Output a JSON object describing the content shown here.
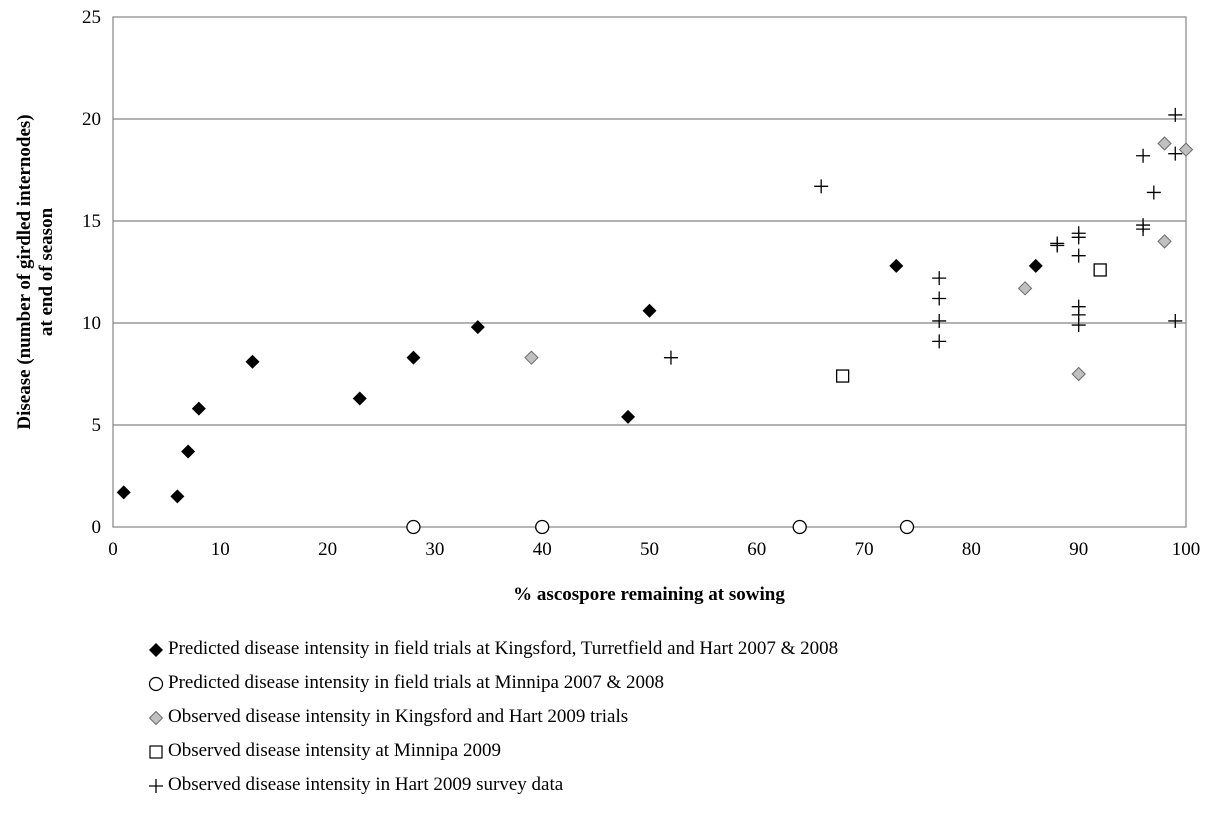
{
  "chart_data": {
    "type": "scatter",
    "xlabel": "% ascospore remaining at sowing",
    "ylabel_lines": [
      "Disease (number of girdled internodes)",
      "at end of season"
    ],
    "xlim": [
      0,
      100
    ],
    "ylim": [
      0,
      25
    ],
    "x_ticks": [
      "0",
      "10",
      "20",
      "30",
      "40",
      "50",
      "60",
      "70",
      "80",
      "90",
      "100"
    ],
    "y_ticks": [
      "0",
      "5",
      "10",
      "15",
      "20",
      "25"
    ],
    "grid": "horizontal",
    "legend_position": "bottom",
    "series": [
      {
        "name": "Predicted disease intensity in field trials at Kingsford, Turretfield and Hart  2007 & 2008",
        "marker": "filled-diamond",
        "color": "#000000",
        "points": [
          [
            1,
            1.7
          ],
          [
            6,
            1.5
          ],
          [
            7,
            3.7
          ],
          [
            8,
            5.8
          ],
          [
            13,
            8.1
          ],
          [
            23,
            6.3
          ],
          [
            28,
            8.3
          ],
          [
            34,
            9.8
          ],
          [
            48,
            5.4
          ],
          [
            50,
            10.6
          ],
          [
            73,
            12.8
          ],
          [
            86,
            12.8
          ]
        ]
      },
      {
        "name": "Predicted disease intensity in field trials at Minnipa 2007 & 2008",
        "marker": "open-circle",
        "color": "#000000",
        "points": [
          [
            28,
            0
          ],
          [
            40,
            0
          ],
          [
            64,
            0
          ],
          [
            74,
            0
          ]
        ]
      },
      {
        "name": "Observed disease intensity in Kingsford and Hart 2009 trials",
        "marker": "grey-diamond",
        "color": "#c0c0c0",
        "points": [
          [
            39,
            8.3
          ],
          [
            85,
            11.7
          ],
          [
            90,
            7.5
          ],
          [
            98,
            14.0
          ],
          [
            98,
            18.8
          ],
          [
            100,
            18.5
          ]
        ]
      },
      {
        "name": "Observed disease intensity at Minnipa 2009",
        "marker": "open-square",
        "color": "#000000",
        "points": [
          [
            68,
            7.4
          ],
          [
            92,
            12.6
          ]
        ]
      },
      {
        "name": "Observed disease intensity in Hart 2009 survey data",
        "marker": "plus",
        "color": "#000000",
        "points": [
          [
            52,
            8.3
          ],
          [
            66,
            16.7
          ],
          [
            77,
            9.1
          ],
          [
            77,
            10.1
          ],
          [
            77,
            11.2
          ],
          [
            77,
            12.2
          ],
          [
            88,
            13.8
          ],
          [
            88,
            13.9
          ],
          [
            90,
            9.9
          ],
          [
            90,
            10.4
          ],
          [
            90,
            10.8
          ],
          [
            90,
            13.3
          ],
          [
            90,
            14.2
          ],
          [
            90,
            14.4
          ],
          [
            96,
            14.6
          ],
          [
            96,
            14.8
          ],
          [
            96,
            18.2
          ],
          [
            97,
            16.4
          ],
          [
            99,
            10.1
          ],
          [
            99,
            18.3
          ],
          [
            99,
            20.2
          ]
        ]
      }
    ]
  }
}
